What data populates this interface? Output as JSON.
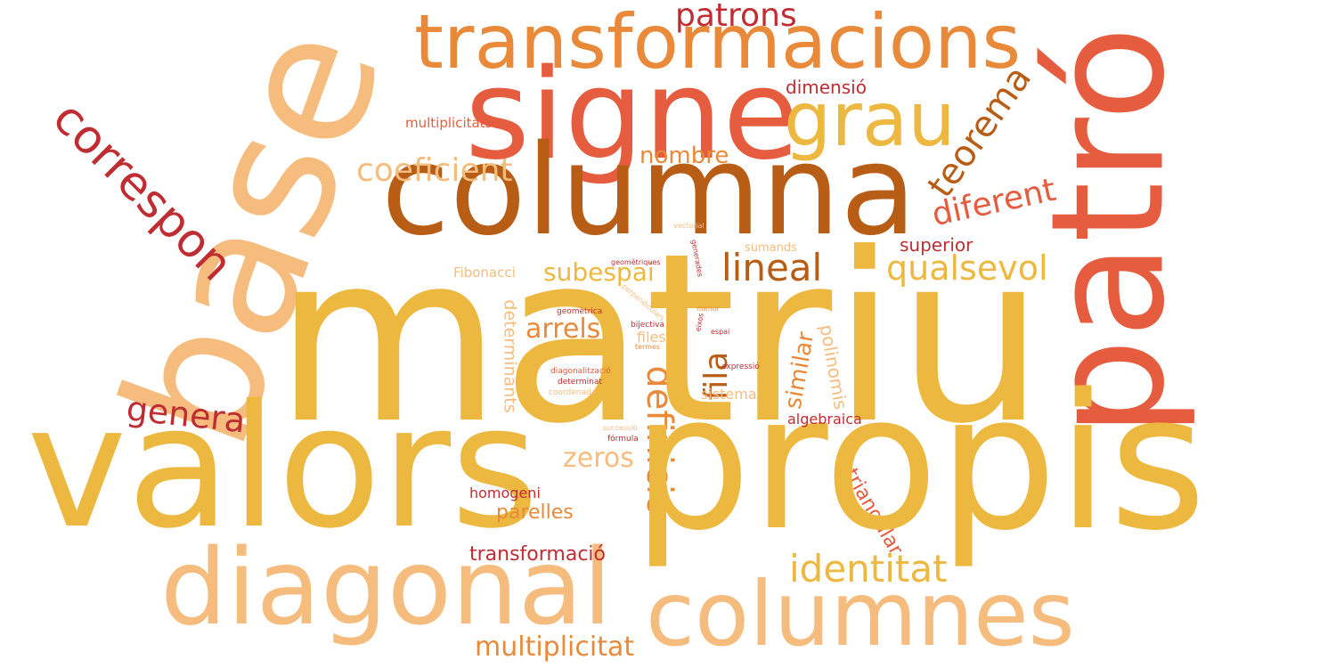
{
  "colors": {
    "yellow": "#EDB83F",
    "peach": "#F5BC7E",
    "orange": "#E98A3A",
    "red_orange": "#E55C3E",
    "brown": "#B85D16",
    "crimson": "#BF2D32"
  },
  "words": [
    "matriu",
    "valors",
    "propis",
    "base",
    "signe",
    "columna",
    "patró",
    "transformacions",
    "diagonal",
    "columnes",
    "grau",
    "correspon",
    "patrons",
    "teorema",
    "dimensió",
    "multiplicitats",
    "coeficient",
    "nombre",
    "diferent",
    "lineal",
    "qualsevol",
    "superior",
    "subespai",
    "sumands",
    "Fibonacci",
    "vectorial",
    "generades",
    "geomètriques",
    "perpendiculars",
    "determinants",
    "geomètrica",
    "menor",
    "eixos",
    "espai",
    "bijectiva",
    "files",
    "fila",
    "arrels",
    "definició",
    "similar",
    "polinomis",
    "termes",
    "expressió",
    "diagonalització",
    "determinat",
    "coordenada",
    "sistema",
    "general",
    "algebraica",
    "successió",
    "fórmula",
    "zeros",
    "triangular",
    "homogeni",
    "parelles",
    "identitat",
    "transformació",
    "multiplicitat"
  ]
}
